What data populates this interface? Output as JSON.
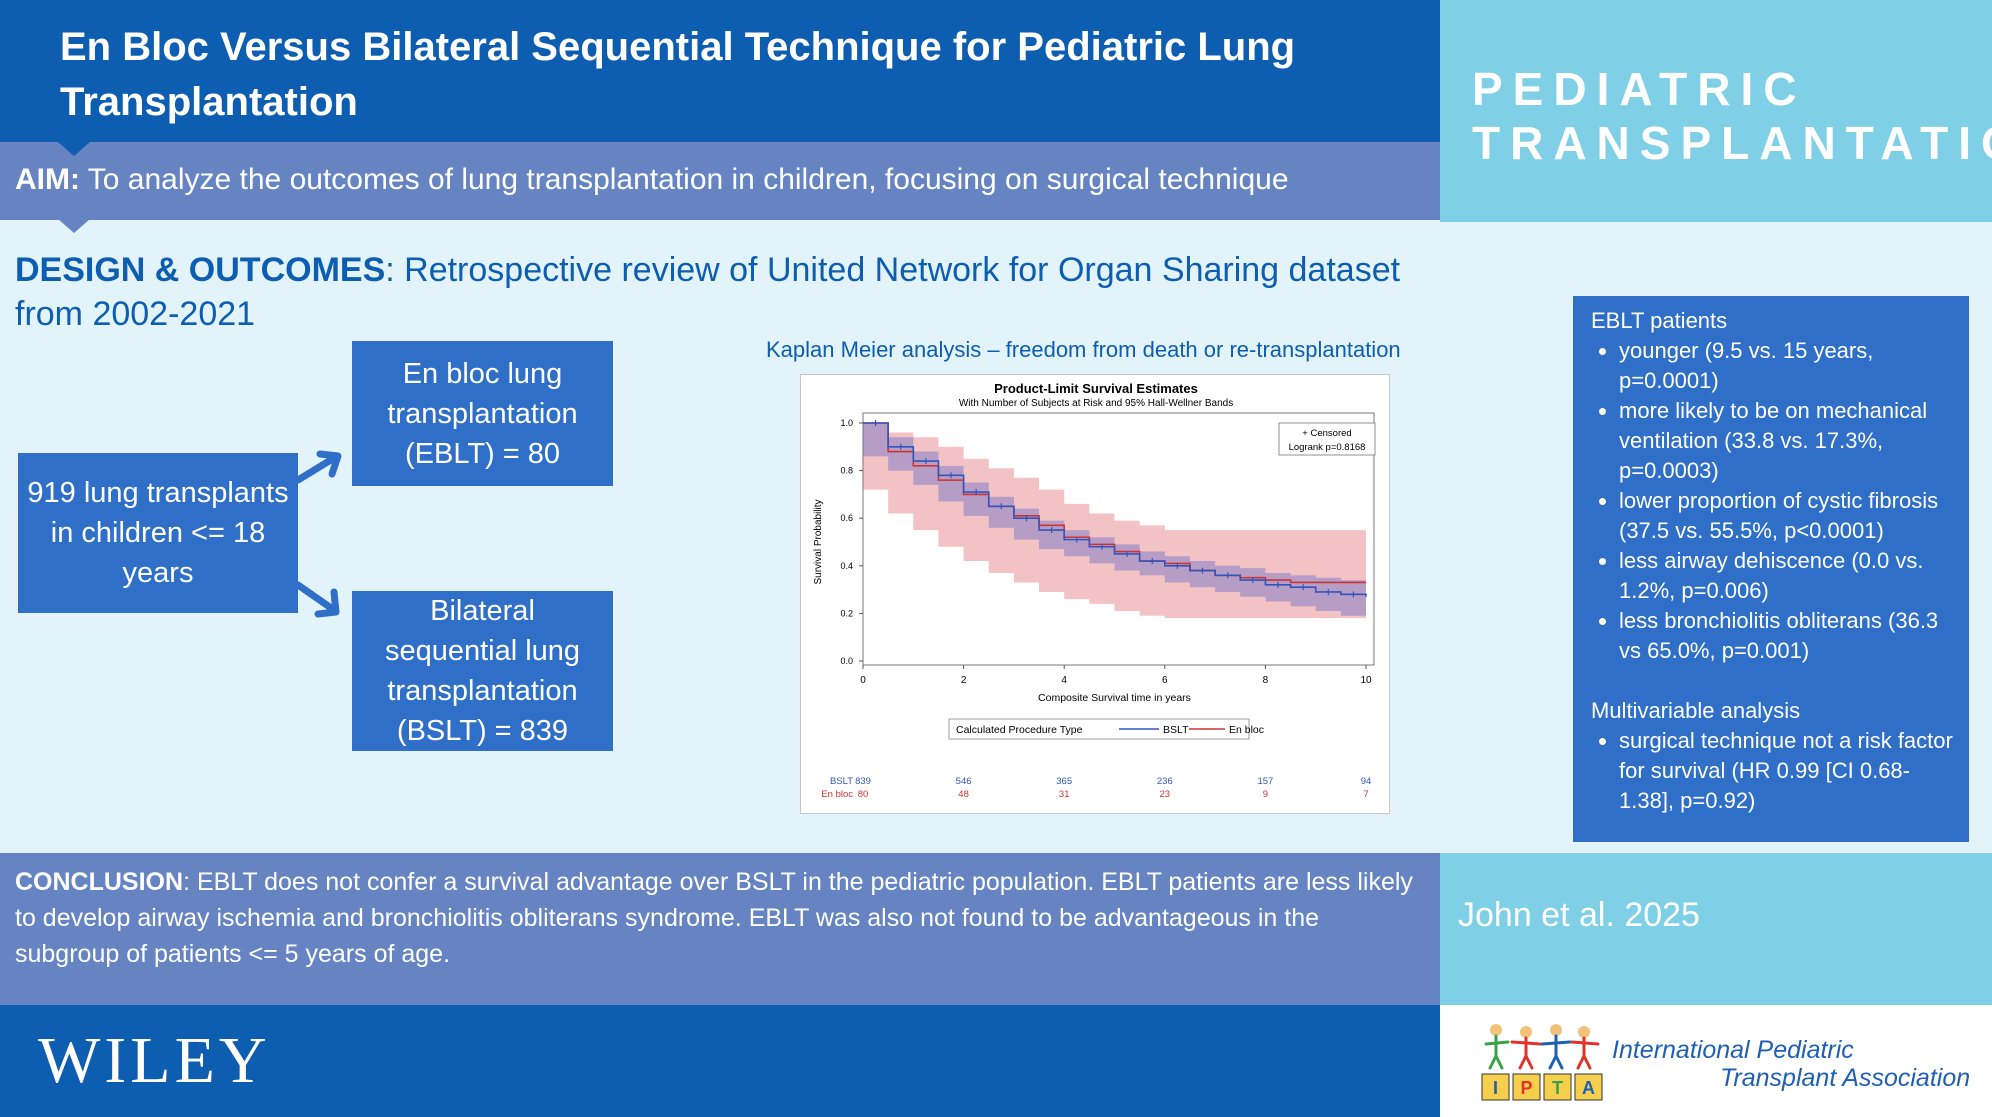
{
  "header": {
    "title": "En Bloc Versus Bilateral Sequential Technique for Pediatric Lung Transplantation",
    "journal_logo_line1": "PEDIATRIC",
    "journal_logo_line2": "TRANSPLANTATION"
  },
  "aim": {
    "label": "AIM:",
    "text": " To analyze the outcomes of lung transplantation in children, focusing on surgical technique"
  },
  "design": {
    "label": "DESIGN & OUTCOMES",
    "text": ": Retrospective review of United Network for Organ Sharing dataset from 2002-2021"
  },
  "flow": {
    "total": "919 lung transplants in children <= 18 years",
    "eblt": "En bloc lung transplantation (EBLT) = 80",
    "bslt": "Bilateral sequential lung transplantation (BSLT) = 839"
  },
  "km_heading": "Kaplan Meier analysis – freedom from death or re-transplantation",
  "chart_data": {
    "type": "line",
    "title": "Product-Limit Survival Estimates",
    "subtitle": "With Number of Subjects at Risk and 95% Hall-Wellner Bands",
    "xlabel": "Composite Survival time in years",
    "ylabel": "Survival Probability",
    "xlim": [
      0,
      10
    ],
    "ylim": [
      0,
      1.0
    ],
    "x_ticks": [
      0,
      2,
      4,
      6,
      8,
      10
    ],
    "y_ticks": [
      "0.0",
      "0.2",
      "0.4",
      "0.6",
      "0.8",
      "1.0"
    ],
    "censored_label": "+ Censored",
    "logrank": "Logrank p=0.8168",
    "legend_title": "Calculated Procedure Type",
    "legend_placement": "bottom",
    "series": [
      {
        "name": "BSLT",
        "color": "#3355bb",
        "x": [
          0,
          0.5,
          1,
          1.5,
          2,
          2.5,
          3,
          3.5,
          4,
          4.5,
          5,
          5.5,
          6,
          6.5,
          7,
          7.5,
          8,
          8.5,
          9,
          9.5,
          10
        ],
        "y": [
          1.0,
          0.9,
          0.84,
          0.78,
          0.71,
          0.65,
          0.6,
          0.55,
          0.51,
          0.48,
          0.45,
          0.42,
          0.4,
          0.38,
          0.36,
          0.34,
          0.32,
          0.31,
          0.29,
          0.28,
          0.27
        ],
        "band_lower": [
          0.96,
          0.86,
          0.8,
          0.74,
          0.67,
          0.61,
          0.56,
          0.51,
          0.47,
          0.44,
          0.41,
          0.38,
          0.36,
          0.33,
          0.31,
          0.29,
          0.27,
          0.25,
          0.23,
          0.21,
          0.19
        ],
        "band_upper": [
          1.0,
          0.94,
          0.88,
          0.82,
          0.75,
          0.69,
          0.64,
          0.59,
          0.55,
          0.52,
          0.49,
          0.46,
          0.44,
          0.42,
          0.4,
          0.39,
          0.37,
          0.36,
          0.35,
          0.34,
          0.33
        ],
        "at_risk": [
          "839",
          "546",
          "365",
          "236",
          "157",
          "94"
        ]
      },
      {
        "name": "En bloc",
        "color": "#cc3333",
        "x": [
          0,
          0.5,
          1,
          1.5,
          2,
          2.5,
          3,
          3.5,
          4,
          4.5,
          5,
          5.5,
          6,
          6.5,
          7,
          7.5,
          8,
          8.5,
          9,
          9.5,
          10
        ],
        "y": [
          1.0,
          0.88,
          0.82,
          0.76,
          0.7,
          0.65,
          0.61,
          0.57,
          0.52,
          0.49,
          0.46,
          0.42,
          0.41,
          0.38,
          0.36,
          0.35,
          0.34,
          0.33,
          0.33,
          0.33,
          0.33
        ],
        "band_lower": [
          0.9,
          0.72,
          0.62,
          0.55,
          0.48,
          0.42,
          0.37,
          0.33,
          0.29,
          0.26,
          0.24,
          0.21,
          0.19,
          0.18,
          0.18,
          0.18,
          0.18,
          0.18,
          0.18,
          0.18,
          0.18
        ],
        "band_upper": [
          1.0,
          0.96,
          0.94,
          0.9,
          0.85,
          0.81,
          0.77,
          0.72,
          0.66,
          0.62,
          0.59,
          0.57,
          0.55,
          0.55,
          0.55,
          0.55,
          0.55,
          0.55,
          0.55,
          0.55,
          0.55
        ],
        "at_risk": [
          "80",
          "48",
          "31",
          "23",
          "9",
          "7"
        ]
      }
    ]
  },
  "findings": {
    "heading1": "EBLT patients",
    "items1": [
      "younger (9.5 vs. 15 years, p=0.0001)",
      "more likely to be on mechanical ventilation (33.8 vs. 17.3%, p=0.0003)",
      "lower proportion of cystic fibrosis (37.5 vs. 55.5%, p<0.0001)",
      "less airway dehiscence (0.0 vs. 1.2%, p=0.006)",
      "less bronchiolitis obliterans (36.3 vs 65.0%, p=0.001)"
    ],
    "heading2": "Multivariable analysis",
    "items2": [
      "surgical technique not a risk factor for survival (HR 0.99 [CI 0.68-1.38], p=0.92)"
    ]
  },
  "conclusion": {
    "label": "CONCLUSION",
    "text": ": EBLT does not confer a survival advantage over BSLT in the pediatric population. EBLT patients are less likely to develop airway ischemia and bronchiolitis obliterans syndrome. EBLT was also not found to be advantageous in the subgroup of patients <= 5 years of age."
  },
  "citation": "John et al. 2025",
  "footer": {
    "publisher": "WILEY",
    "ipta_blocks": [
      "I",
      "P",
      "T",
      "A"
    ],
    "ipta_line1": "International Pediatric",
    "ipta_line2": "Transplant Association"
  },
  "colors": {
    "navy": "#0d5db0",
    "periwinkle": "#6684c2",
    "sky": "#7fd0e6",
    "box_blue": "#2f6fc8",
    "background": "#e2f3fa"
  }
}
